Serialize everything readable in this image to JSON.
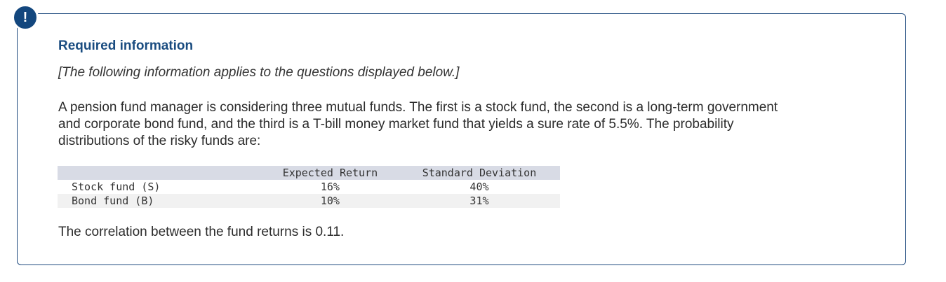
{
  "alert": {
    "icon": "exclamation-icon",
    "glyph": "!"
  },
  "heading": "Required information",
  "note": "[The following information applies to the questions displayed below.]",
  "intro_lines": [
    "A pension fund manager is considering three mutual funds. The first is a stock fund, the second is a long-term government",
    "and corporate bond fund, and the third is a T-bill money market fund that yields a sure rate of 5.5%. The probability",
    "distributions of the risky funds are:"
  ],
  "table": {
    "headers": [
      "",
      "Expected Return",
      "Standard Deviation"
    ],
    "rows": [
      {
        "name": "Stock fund (S)",
        "expected_return": "16%",
        "std_dev": "40%"
      },
      {
        "name": "Bond fund (B)",
        "expected_return": "10%",
        "std_dev": "31%"
      }
    ]
  },
  "conclusion": "The correlation between the fund returns is 0.11.",
  "colors": {
    "accent": "#13477e",
    "heading": "#1a4c80",
    "table_header_bg": "#d8dbe5"
  }
}
